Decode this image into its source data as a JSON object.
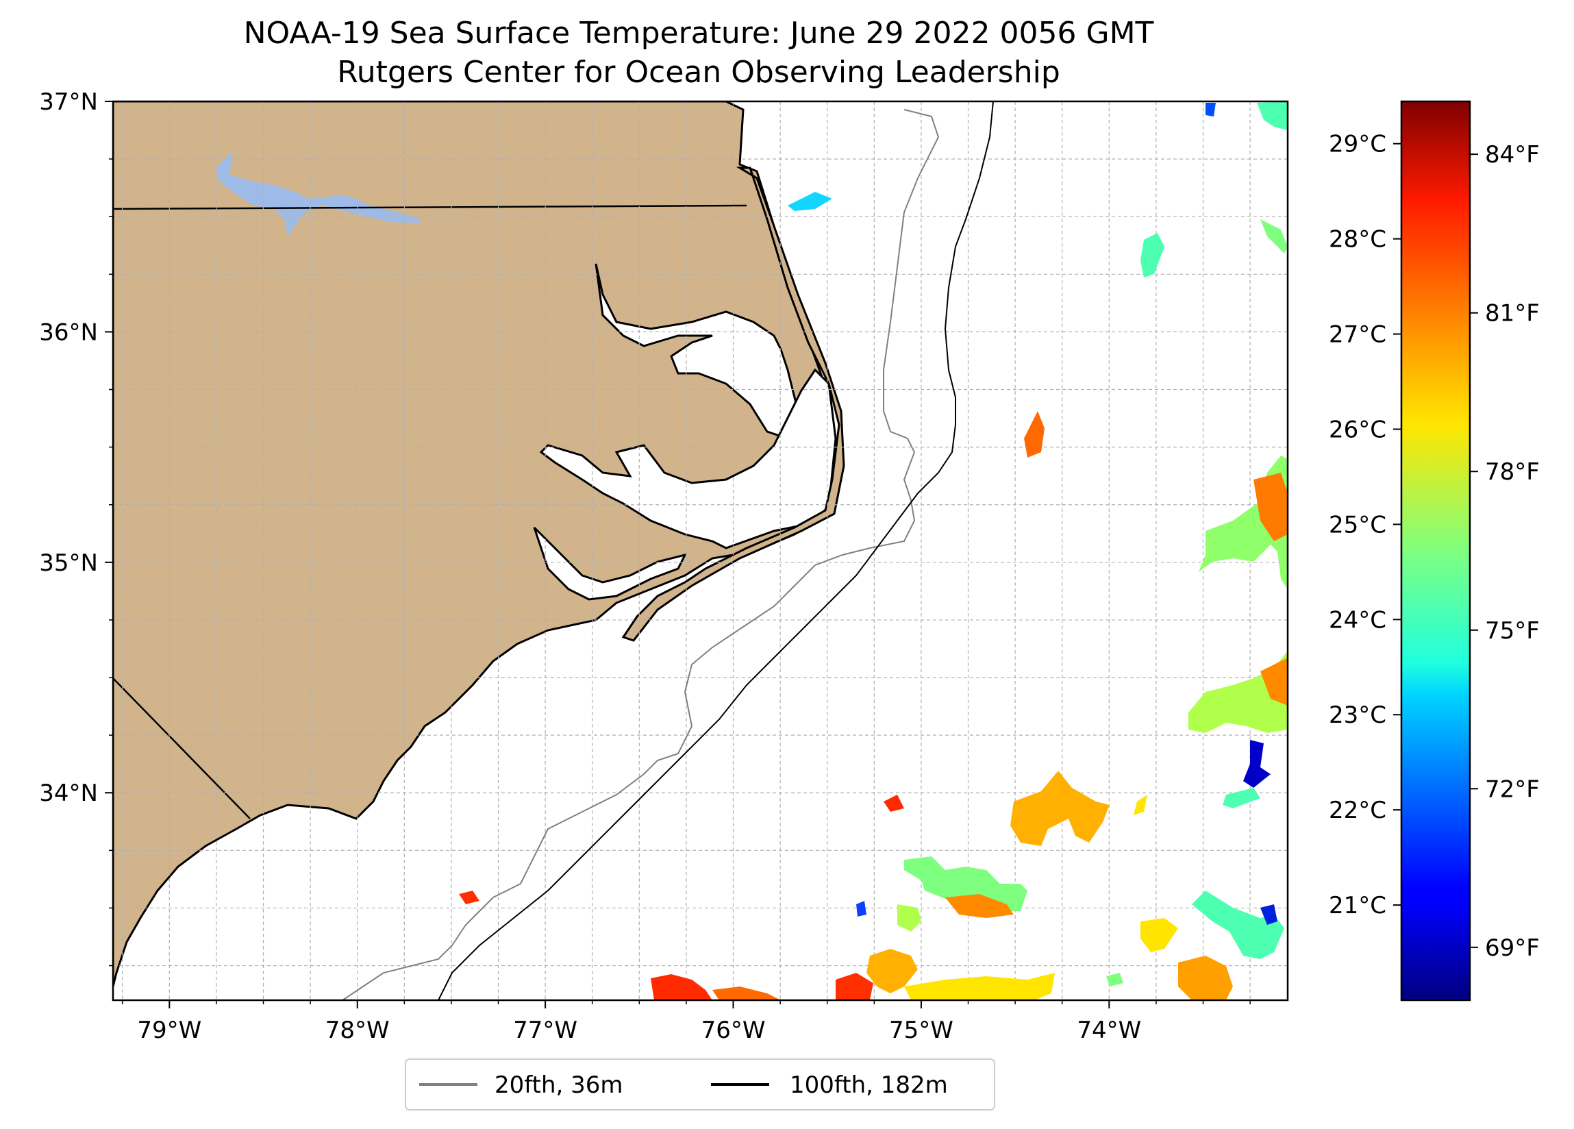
{
  "title": {
    "line1": "NOAA-19 Sea Surface Temperature: June 29 2022 0056 GMT",
    "line2": "Rutgers Center for Ocean Observing Leadership"
  },
  "map": {
    "lon_range": [
      -79.3,
      -73.05
    ],
    "lat_range": [
      33.1,
      37.0
    ],
    "lon_ticks": [
      {
        "value": -79,
        "label": "79°W"
      },
      {
        "value": -78,
        "label": "78°W"
      },
      {
        "value": -77,
        "label": "77°W"
      },
      {
        "value": -76,
        "label": "76°W"
      },
      {
        "value": -75,
        "label": "75°W"
      },
      {
        "value": -74,
        "label": "74°W"
      }
    ],
    "lat_ticks": [
      {
        "value": 37,
        "label": "37°N"
      },
      {
        "value": 36,
        "label": "36°N"
      },
      {
        "value": 35,
        "label": "35°N"
      },
      {
        "value": 34,
        "label": "34°N"
      }
    ],
    "grid": true,
    "land_color": "#d2b48c",
    "lake_color": "#9ebbe8",
    "isobath_20_color": "#808080",
    "isobath_100_color": "#000000"
  },
  "legend": {
    "placement": "bottom-center",
    "items": [
      {
        "label": "20fth, 36m",
        "color": "#808080"
      },
      {
        "label": "100fth, 182m",
        "color": "#000000"
      }
    ]
  },
  "colorbar": {
    "colormap": "jet",
    "celsius_ticks": [
      {
        "value": 29,
        "label": "29°C"
      },
      {
        "value": 28,
        "label": "28°C"
      },
      {
        "value": 27,
        "label": "27°C"
      },
      {
        "value": 26,
        "label": "26°C"
      },
      {
        "value": 25,
        "label": "25°C"
      },
      {
        "value": 24,
        "label": "24°C"
      },
      {
        "value": 23,
        "label": "23°C"
      },
      {
        "value": 22,
        "label": "22°C"
      },
      {
        "value": 21,
        "label": "21°C"
      }
    ],
    "fahrenheit_ticks": [
      {
        "value": 84,
        "label": "84°F"
      },
      {
        "value": 81,
        "label": "81°F"
      },
      {
        "value": 78,
        "label": "78°F"
      },
      {
        "value": 75,
        "label": "75°F"
      },
      {
        "value": 72,
        "label": "72°F"
      },
      {
        "value": 69,
        "label": "69°F"
      }
    ],
    "f_range": [
      68.0,
      85.0
    ]
  }
}
